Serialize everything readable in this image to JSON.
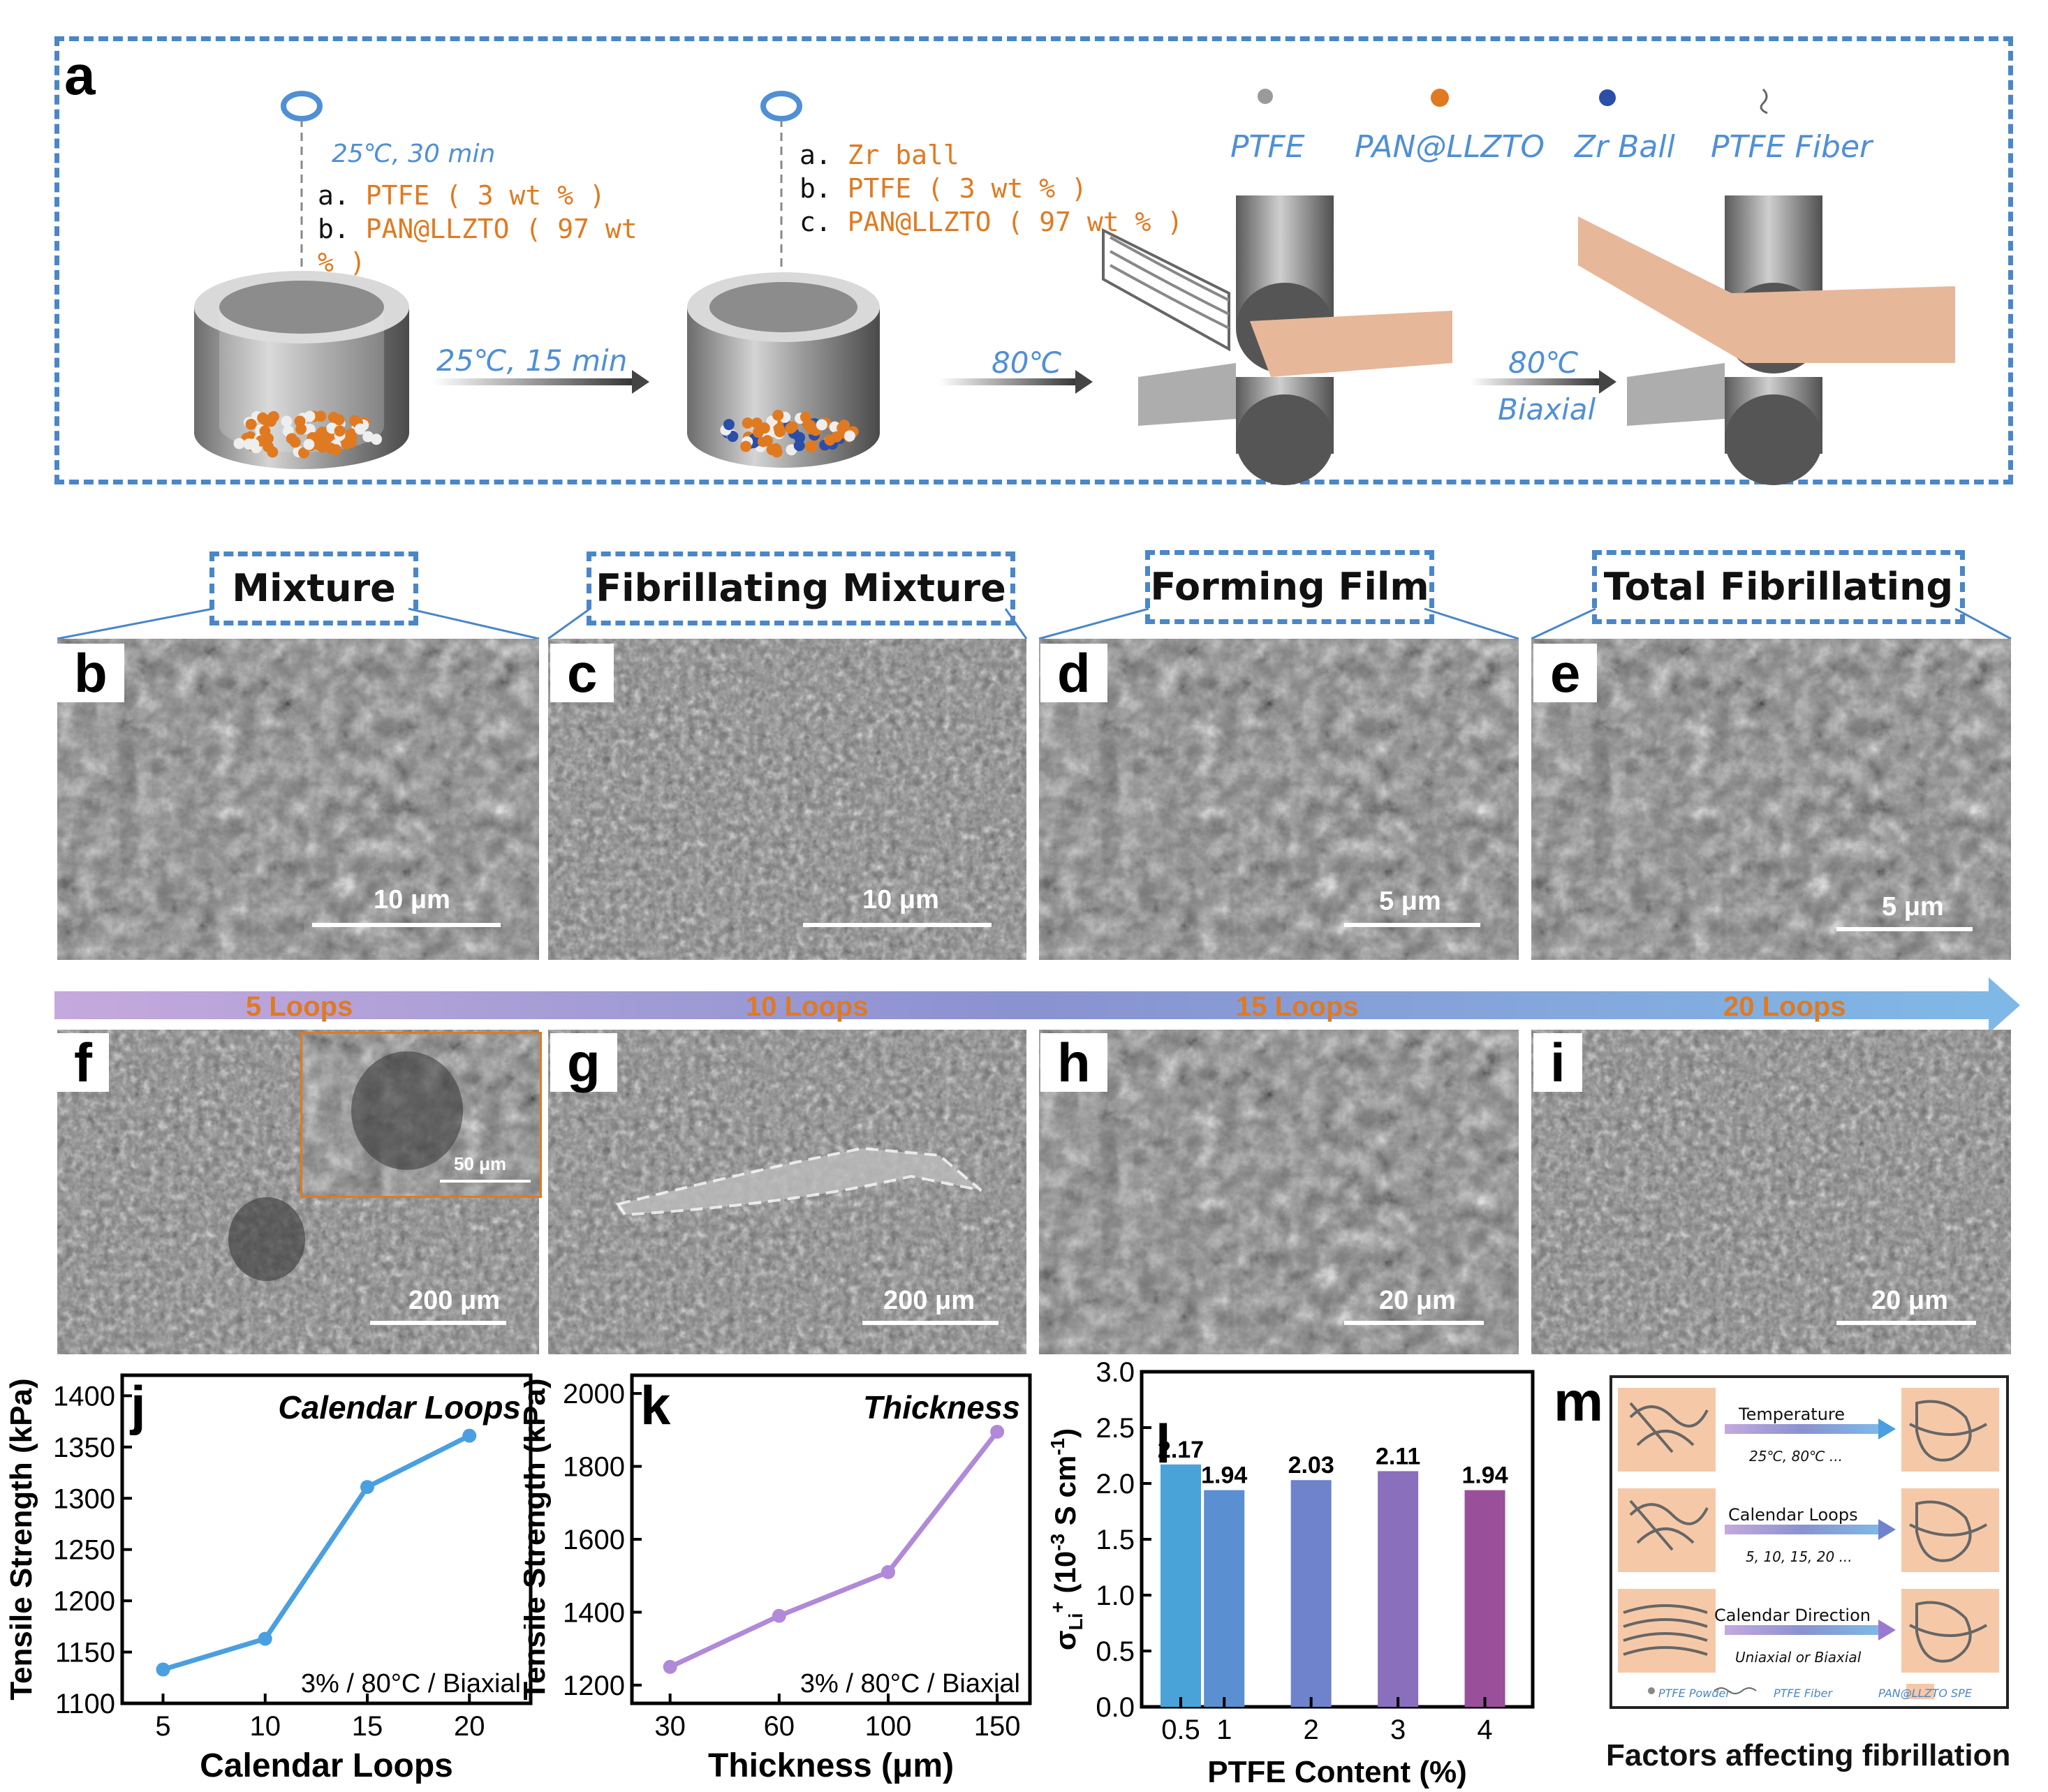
{
  "panel_a": {
    "letter": "a",
    "step1_conditions": "25℃, 30 min",
    "step1_items": [
      {
        "key": "a.",
        "text": "PTFE  ( 3 wt % )"
      },
      {
        "key": "b.",
        "text": "PAN@LLZTO ( 97 wt"
      },
      {
        "key": "",
        "text": "% )"
      }
    ],
    "arrow1_label": "25℃, 15 min",
    "step2_items": [
      {
        "key": "a.",
        "text": "Zr ball"
      },
      {
        "key": "b.",
        "text": "PTFE  ( 3 wt % )"
      },
      {
        "key": "c.",
        "text": "PAN@LLZTO ( 97 wt % )"
      }
    ],
    "arrow2_label": "80℃",
    "arrow3_label_1": "80℃",
    "arrow3_label_2": "Biaxial",
    "legend": [
      "PTFE",
      "PAN@LLZTO",
      "Zr Ball",
      "PTFE Fiber"
    ],
    "colors": {
      "frame": "#4a86c8",
      "orange": "#e07a21",
      "blue_text": "#4f8fd6",
      "film": "#e7b799",
      "zr_ball": "#2b4ea8"
    }
  },
  "stages": [
    "Mixture",
    "Fibrillating Mixture",
    "Forming Film",
    "Total Fibrillating"
  ],
  "sem_top": [
    {
      "letter": "b",
      "scale": "10 μm"
    },
    {
      "letter": "c",
      "scale": "10 μm"
    },
    {
      "letter": "d",
      "scale": "5 μm"
    },
    {
      "letter": "e",
      "scale": "5 μm"
    }
  ],
  "loops_arrow": [
    "5 Loops",
    "10 Loops",
    "15 Loops",
    "20 Loops"
  ],
  "sem_bottom": [
    {
      "letter": "f",
      "scale": "200 μm",
      "inset_scale": "50 μm"
    },
    {
      "letter": "g",
      "scale": "200 μm"
    },
    {
      "letter": "h",
      "scale": "20 μm"
    },
    {
      "letter": "i",
      "scale": "20 μm"
    }
  ],
  "chart_data": [
    {
      "type": "line",
      "letter": "j",
      "title": "Calendar Loops",
      "annotation": "3% / 80°C / Biaxial",
      "xlabel": "Calendar Loops",
      "ylabel": "Tensile Strength (kPa)",
      "x": [
        5,
        10,
        15,
        20
      ],
      "y": [
        1133,
        1163,
        1311,
        1361
      ],
      "xticks": [
        "5",
        "10",
        "15",
        "20"
      ],
      "yticks": [
        1100,
        1150,
        1200,
        1250,
        1300,
        1350,
        1400
      ],
      "xlim": [
        3,
        23
      ],
      "ylim": [
        1100,
        1420
      ],
      "color": "#4a9fe0"
    },
    {
      "type": "line",
      "letter": "k",
      "title": "Thickness",
      "annotation": "3% / 80°C / Biaxial",
      "xlabel": "Thickness (μm)",
      "ylabel": "Tensile Strength (kPa)",
      "x": [
        30,
        60,
        100,
        150
      ],
      "y": [
        1250,
        1390,
        1510,
        1895
      ],
      "x_positions": [
        0,
        1,
        2,
        3
      ],
      "xticks": [
        "30",
        "60",
        "100",
        "150"
      ],
      "yticks": [
        1200,
        1400,
        1600,
        1800,
        2000
      ],
      "ylim": [
        1150,
        2050
      ],
      "color": "#b08ad8"
    },
    {
      "type": "bar",
      "letter": "l",
      "xlabel": "PTFE Content (%)",
      "ylabel": "σLi+ (10-3 S cm-1)",
      "ylabel_parts": {
        "sigma": "σ",
        "sub": "Li",
        "sup": "+",
        "unit": " (10",
        "exp": "-3",
        "unit2": " S cm",
        "exp2": "-1",
        "close": ")"
      },
      "categories": [
        "0.5",
        "1",
        "2",
        "3",
        "4"
      ],
      "values": [
        2.17,
        1.94,
        2.03,
        2.11,
        1.94
      ],
      "value_labels": [
        "2.17",
        "1.94",
        "2.03",
        "2.11",
        "1.94"
      ],
      "yticks": [
        "0.0",
        "0.5",
        "1.0",
        "1.5",
        "2.0",
        "2.5",
        "3.0"
      ],
      "ylim": [
        0,
        3.0
      ],
      "colors": [
        "#4aa3d8",
        "#5a8fd2",
        "#6f83cc",
        "#8a6fbd",
        "#9a4f9a"
      ]
    }
  ],
  "panel_m": {
    "letter": "m",
    "rows": [
      {
        "title": "Temperature",
        "sub": "25℃, 80℃ ..."
      },
      {
        "title": "Calendar Loops",
        "sub": "5, 10, 15, 20 ..."
      },
      {
        "title": "Calendar Direction",
        "sub": "Uniaxial or Biaxial"
      }
    ],
    "legend": [
      "PTFE Powder",
      "PTFE Fiber",
      "PAN@LLZTO SPE"
    ],
    "caption": "Factors affecting fibrillation"
  }
}
